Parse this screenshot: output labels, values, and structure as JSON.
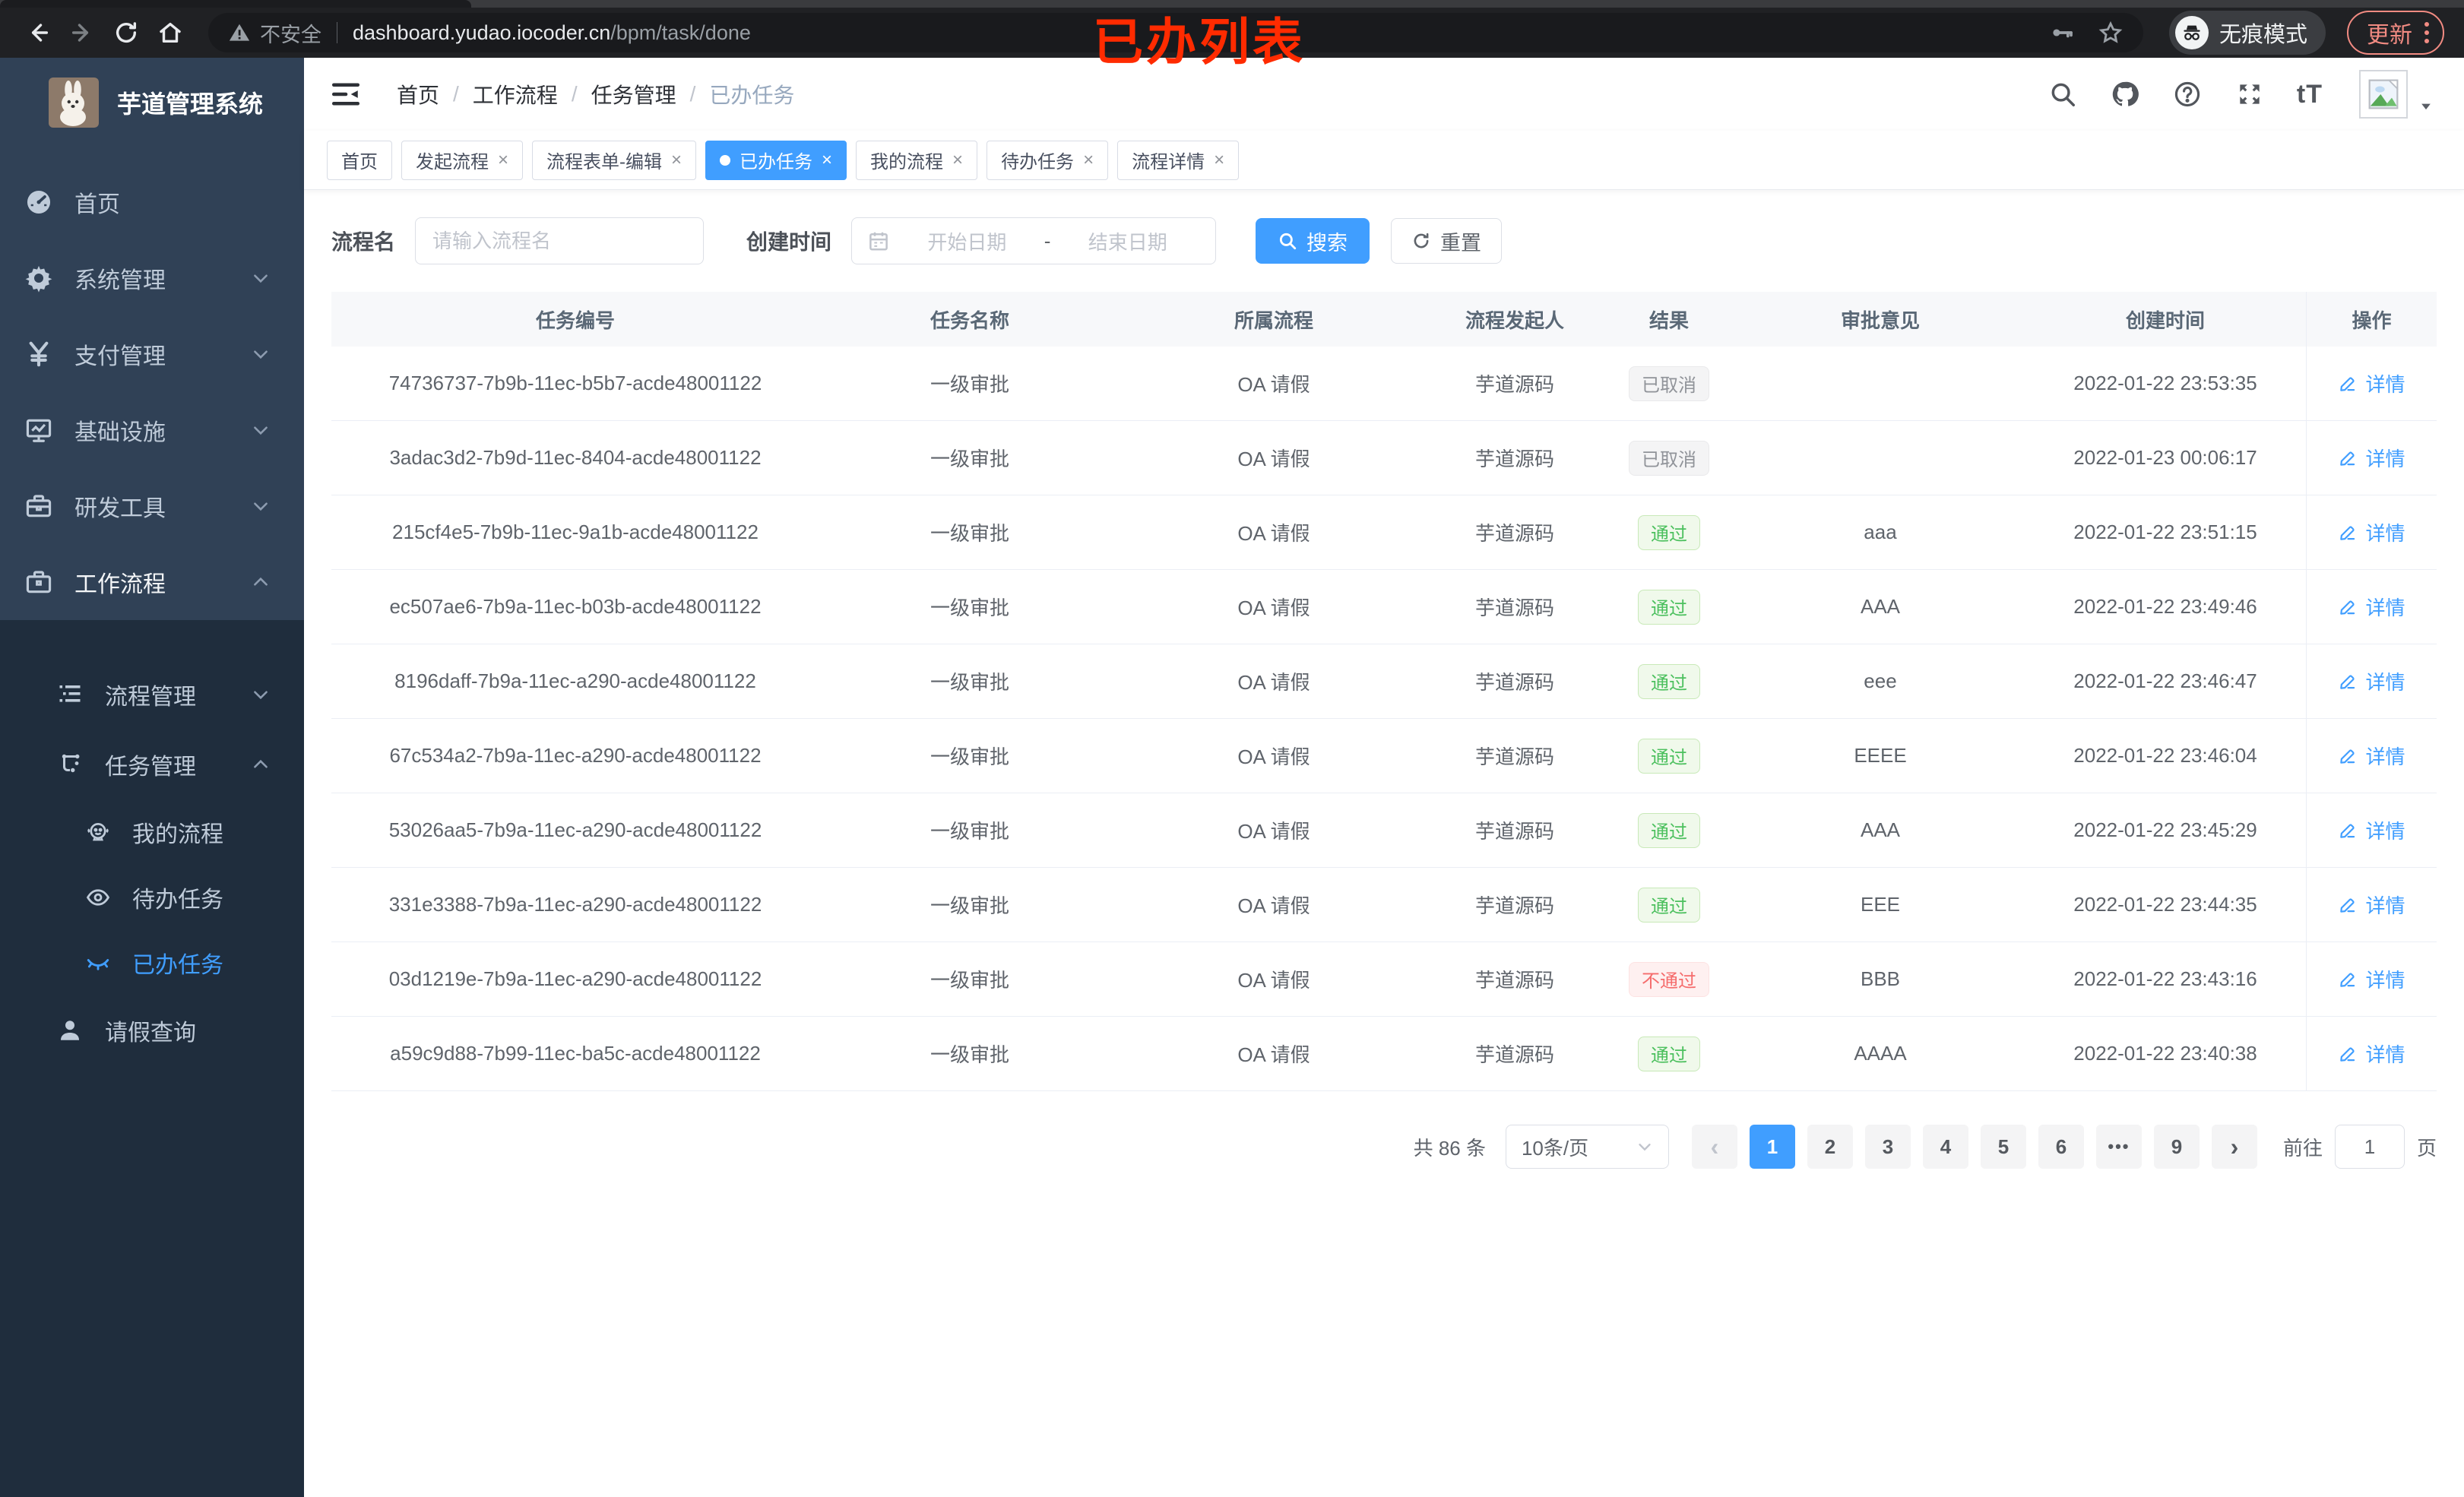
{
  "browser": {
    "security_label": "不安全",
    "url_host": "dashboard.yudao.iocoder.cn",
    "url_path": "/bpm/task/done",
    "incognito_label": "无痕模式",
    "update_label": "更新",
    "annotation": "已办列表",
    "annotation_color": "#ff2b00"
  },
  "sidebar": {
    "logo_title": "芋道管理系统",
    "items": [
      {
        "label": "首页",
        "icon": "dashboard-icon",
        "level": 1
      },
      {
        "label": "系统管理",
        "icon": "gear-icon",
        "level": 1,
        "chevron": "down"
      },
      {
        "label": "支付管理",
        "icon": "yen-icon",
        "level": 1,
        "chevron": "down"
      },
      {
        "label": "基础设施",
        "icon": "monitor-icon",
        "level": 1,
        "chevron": "down"
      },
      {
        "label": "研发工具",
        "icon": "toolbox-icon",
        "level": 1,
        "chevron": "down"
      },
      {
        "label": "工作流程",
        "icon": "briefcase-icon",
        "level": 1,
        "chevron": "up",
        "open": true
      }
    ],
    "submenu": [
      {
        "label": "流程管理",
        "icon": "list-tree-icon",
        "level": 2,
        "chevron": "down"
      },
      {
        "label": "任务管理",
        "icon": "flow-nodes-icon",
        "level": 2,
        "chevron": "up"
      },
      {
        "label": "我的流程",
        "icon": "robot-icon",
        "level": 3
      },
      {
        "label": "待办任务",
        "icon": "eye-icon",
        "level": 3
      },
      {
        "label": "已办任务",
        "icon": "eye-closed-icon",
        "level": 3,
        "active": true
      },
      {
        "label": "请假查询",
        "icon": "user-icon",
        "level": 2
      }
    ]
  },
  "header": {
    "breadcrumb": [
      "首页",
      "工作流程",
      "任务管理",
      "已办任务"
    ],
    "font_size_icon_text": "tT"
  },
  "tabs": [
    {
      "label": "首页",
      "closable": false,
      "active": false
    },
    {
      "label": "发起流程",
      "closable": true,
      "active": false
    },
    {
      "label": "流程表单-编辑",
      "closable": true,
      "active": false
    },
    {
      "label": "已办任务",
      "closable": true,
      "active": true
    },
    {
      "label": "我的流程",
      "closable": true,
      "active": false
    },
    {
      "label": "待办任务",
      "closable": true,
      "active": false
    },
    {
      "label": "流程详情",
      "closable": true,
      "active": false
    }
  ],
  "filters": {
    "name_label": "流程名",
    "name_placeholder": "请输入流程名",
    "time_label": "创建时间",
    "date_start_placeholder": "开始日期",
    "date_separator": "-",
    "date_end_placeholder": "结束日期",
    "search_label": "搜索",
    "reset_label": "重置"
  },
  "table": {
    "columns": [
      "任务编号",
      "任务名称",
      "所属流程",
      "流程发起人",
      "结果",
      "审批意见",
      "创建时间",
      "操作"
    ],
    "action_label": "详情",
    "rows": [
      {
        "id": "74736737-7b9b-11ec-b5b7-acde48001122",
        "name": "一级审批",
        "process": "OA 请假",
        "starter": "芋道源码",
        "result": "已取消",
        "result_type": "info",
        "comment": "",
        "created": "2022-01-22 23:53:35"
      },
      {
        "id": "3adac3d2-7b9d-11ec-8404-acde48001122",
        "name": "一级审批",
        "process": "OA 请假",
        "starter": "芋道源码",
        "result": "已取消",
        "result_type": "info",
        "comment": "",
        "created": "2022-01-23 00:06:17"
      },
      {
        "id": "215cf4e5-7b9b-11ec-9a1b-acde48001122",
        "name": "一级审批",
        "process": "OA 请假",
        "starter": "芋道源码",
        "result": "通过",
        "result_type": "success",
        "comment": "aaa",
        "created": "2022-01-22 23:51:15"
      },
      {
        "id": "ec507ae6-7b9a-11ec-b03b-acde48001122",
        "name": "一级审批",
        "process": "OA 请假",
        "starter": "芋道源码",
        "result": "通过",
        "result_type": "success",
        "comment": "AAA",
        "created": "2022-01-22 23:49:46"
      },
      {
        "id": "8196daff-7b9a-11ec-a290-acde48001122",
        "name": "一级审批",
        "process": "OA 请假",
        "starter": "芋道源码",
        "result": "通过",
        "result_type": "success",
        "comment": "eee",
        "created": "2022-01-22 23:46:47"
      },
      {
        "id": "67c534a2-7b9a-11ec-a290-acde48001122",
        "name": "一级审批",
        "process": "OA 请假",
        "starter": "芋道源码",
        "result": "通过",
        "result_type": "success",
        "comment": "EEEE",
        "created": "2022-01-22 23:46:04"
      },
      {
        "id": "53026aa5-7b9a-11ec-a290-acde48001122",
        "name": "一级审批",
        "process": "OA 请假",
        "starter": "芋道源码",
        "result": "通过",
        "result_type": "success",
        "comment": "AAA",
        "created": "2022-01-22 23:45:29"
      },
      {
        "id": "331e3388-7b9a-11ec-a290-acde48001122",
        "name": "一级审批",
        "process": "OA 请假",
        "starter": "芋道源码",
        "result": "通过",
        "result_type": "success",
        "comment": "EEE",
        "created": "2022-01-22 23:44:35"
      },
      {
        "id": "03d1219e-7b9a-11ec-a290-acde48001122",
        "name": "一级审批",
        "process": "OA 请假",
        "starter": "芋道源码",
        "result": "不通过",
        "result_type": "danger",
        "comment": "BBB",
        "created": "2022-01-22 23:43:16"
      },
      {
        "id": "a59c9d88-7b99-11ec-ba5c-acde48001122",
        "name": "一级审批",
        "process": "OA 请假",
        "starter": "芋道源码",
        "result": "通过",
        "result_type": "success",
        "comment": "AAAA",
        "created": "2022-01-22 23:40:38"
      }
    ]
  },
  "pagination": {
    "total_text": "共 86 条",
    "page_size": "10条/页",
    "pages": [
      "1",
      "2",
      "3",
      "4",
      "5",
      "6",
      "•••",
      "9"
    ],
    "active_page": "1",
    "goto_label": "前往",
    "goto_value": "1",
    "goto_suffix": "页"
  },
  "colors": {
    "accent_blue": "#409eff",
    "sidebar_bg": "#304156",
    "submenu_bg": "#1f2d3d",
    "success_text": "#4cc05e",
    "danger_text": "#f56c6c",
    "info_text": "#909399",
    "update_pill": "#f28b82",
    "annotation_red": "#ff2b00"
  }
}
